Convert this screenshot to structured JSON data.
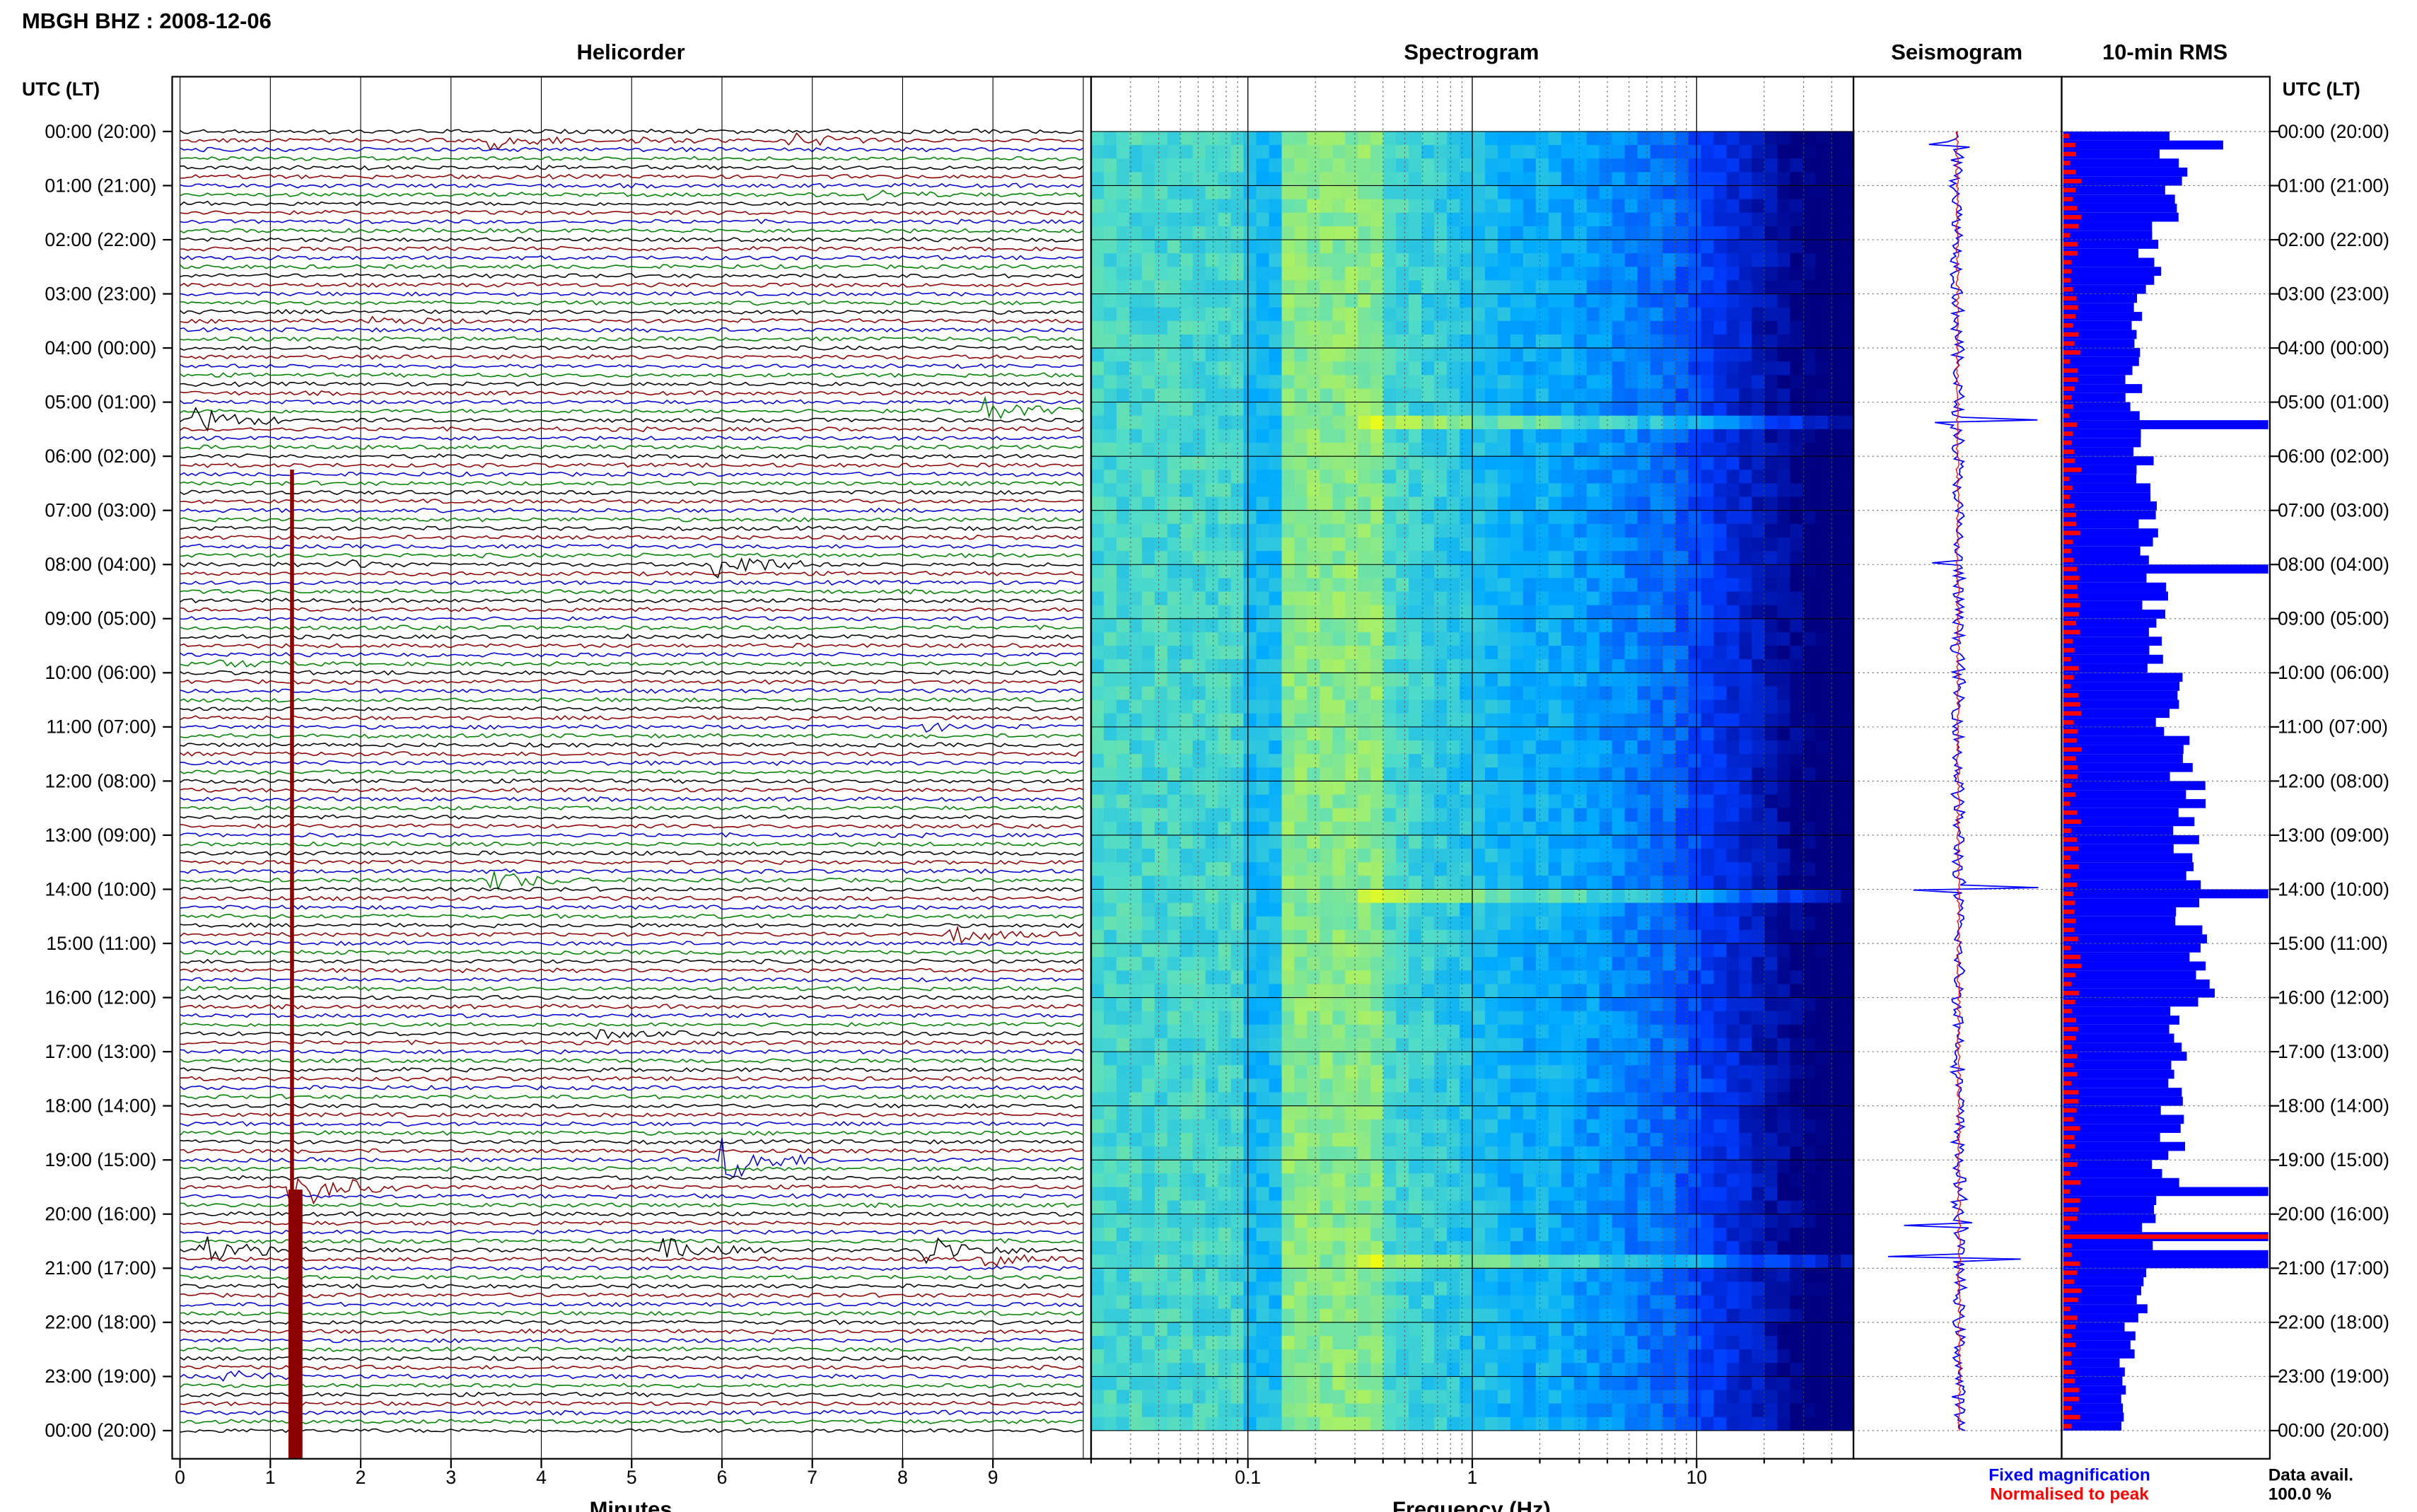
{
  "header": {
    "station_title": "MBGH BHZ : 2008-12-06"
  },
  "panels": {
    "helicorder": "Helicorder",
    "spectrogram": "Spectrogram",
    "seismogram": "Seismogram",
    "rms": "10-min RMS"
  },
  "axes": {
    "left_time_label": "UTC (LT)",
    "right_time_label": "UTC (LT)",
    "helicorder_xlabel": "Minutes",
    "spectrogram_xlabel": "Frequency (Hz)"
  },
  "legend": {
    "fixed": "Fixed magnification",
    "normalised": "Normalised to peak",
    "fixed_color": "#0000ff",
    "normalised_color": "#ff0000"
  },
  "availability": {
    "label": "Data avail.",
    "value": "100.0 %"
  },
  "colors": {
    "trace_cycle": [
      "#000000",
      "#8b0000",
      "#0000cd",
      "#008000"
    ],
    "spectrogram_low": "#000080",
    "spectrogram_high": "#ffff00",
    "rms_bar": "#0000ff",
    "rms_peak": "#ff0000"
  },
  "chart_data": [
    {
      "type": "line",
      "title": "Helicorder",
      "xlabel": "Minutes",
      "ylabel": "UTC (LT)",
      "x_ticks": [
        "0",
        "1",
        "2",
        "3",
        "4",
        "5",
        "6",
        "7",
        "8",
        "9"
      ],
      "xlim": [
        0,
        10
      ],
      "y_ticks": [
        "00:00 (20:00)",
        "01:00 (21:00)",
        "02:00 (22:00)",
        "03:00 (23:00)",
        "04:00 (00:00)",
        "05:00 (01:00)",
        "06:00 (02:00)",
        "07:00 (03:00)",
        "08:00 (04:00)",
        "09:00 (05:00)",
        "10:00 (06:00)",
        "11:00 (07:00)",
        "12:00 (08:00)",
        "13:00 (09:00)",
        "14:00 (10:00)",
        "15:00 (11:00)",
        "16:00 (12:00)",
        "17:00 (13:00)",
        "18:00 (14:00)",
        "19:00 (15:00)",
        "20:00 (16:00)",
        "21:00 (17:00)",
        "22:00 (18:00)",
        "23:00 (19:00)",
        "00:00 (20:00)"
      ],
      "traces_per_hour": 6,
      "events": [
        {
          "hour": 0.1,
          "minute": 3.5,
          "amp": 1.2
        },
        {
          "hour": 0.1,
          "minute": 6.8,
          "amp": 1.0
        },
        {
          "hour": 0.1,
          "minute": 5.1,
          "amp": 0.5
        },
        {
          "hour": 1.2,
          "minute": 7.7,
          "amp": 0.6
        },
        {
          "hour": 3.5,
          "minute": 2.2,
          "amp": 0.6
        },
        {
          "hour": 5.3,
          "minute": 0.2,
          "amp": 1.8
        },
        {
          "hour": 5.1,
          "minute": 9.0,
          "amp": 1.6
        },
        {
          "hour": 8.0,
          "minute": 6.0,
          "amp": 2.2
        },
        {
          "hour": 8.0,
          "minute": 1.8,
          "amp": 0.6
        },
        {
          "hour": 9.8,
          "minute": 0.5,
          "amp": 0.5
        },
        {
          "hour": 11.0,
          "minute": 8.3,
          "amp": 0.5
        },
        {
          "hour": 13.8,
          "minute": 3.5,
          "amp": 1.4
        },
        {
          "hour": 14.9,
          "minute": 8.6,
          "amp": 1.2
        },
        {
          "hour": 16.6,
          "minute": 4.7,
          "amp": 0.6
        },
        {
          "hour": 19.0,
          "minute": 6.1,
          "amp": 3.0
        },
        {
          "hour": 19.5,
          "minute": 1.3,
          "amp": 3.5
        },
        {
          "hour": 20.6,
          "minute": 0.3,
          "amp": 2.0
        },
        {
          "hour": 20.7,
          "minute": 5.4,
          "amp": 1.6
        },
        {
          "hour": 20.6,
          "minute": 8.3,
          "amp": 2.2
        },
        {
          "hour": 20.8,
          "minute": 9.0,
          "amp": 0.8
        },
        {
          "hour": 23.0,
          "minute": 0.5,
          "amp": 1.0
        }
      ]
    },
    {
      "type": "heatmap",
      "title": "Spectrogram",
      "xlabel": "Frequency (Hz)",
      "x_scale": "log",
      "xlim": [
        0.02,
        50
      ],
      "x_ticks": [
        "0.1",
        "1",
        "10"
      ],
      "x_tick_values": [
        0.1,
        1,
        10
      ],
      "ylim_hours": [
        0,
        24
      ],
      "bright_lines_hours": [
        5.35,
        14.0,
        20.8
      ]
    },
    {
      "type": "line",
      "title": "Seismogram",
      "ylim_hours": [
        0,
        24
      ],
      "spikes_hours": [
        0.25,
        5.35,
        8.0,
        14.0,
        20.2,
        20.8
      ]
    },
    {
      "type": "bar",
      "title": "10-min RMS",
      "orientation": "horizontal",
      "bins_per_hour": 6,
      "hours": 24,
      "hourly_level": [
        0.55,
        0.5,
        0.42,
        0.37,
        0.35,
        0.36,
        0.4,
        0.42,
        0.45,
        0.48,
        0.52,
        0.55,
        0.62,
        0.6,
        0.62,
        0.68,
        0.6,
        0.56,
        0.55,
        0.5,
        0.45,
        0.38,
        0.32,
        0.28
      ],
      "spikes": [
        {
          "hour": 0.1,
          "value": 0.78
        },
        {
          "hour": 5.3,
          "value": 1.0
        },
        {
          "hour": 8.0,
          "value": 1.0
        },
        {
          "hour": 14.0,
          "value": 1.0
        },
        {
          "hour": 19.5,
          "value": 1.0
        },
        {
          "hour": 20.3,
          "value": 1.0
        },
        {
          "hour": 20.6,
          "value": 1.0
        },
        {
          "hour": 20.9,
          "value": 1.0
        }
      ],
      "peak_hour": 20.3
    }
  ]
}
